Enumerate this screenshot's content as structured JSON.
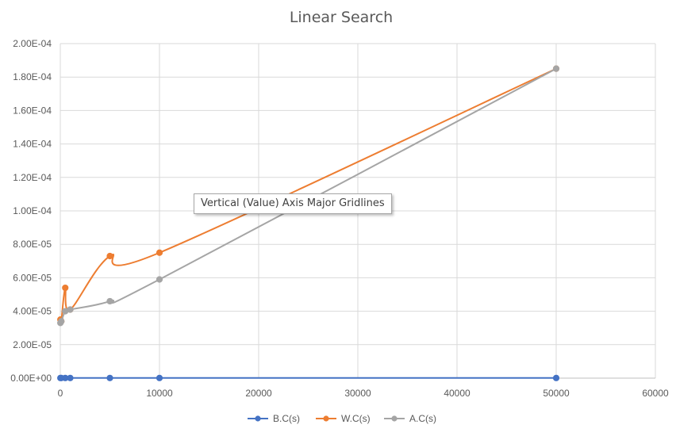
{
  "chart_data": {
    "type": "line",
    "title": "Linear Search",
    "xlabel": "",
    "ylabel": "",
    "xlim": [
      0,
      60000
    ],
    "ylim": [
      0,
      0.0002
    ],
    "x_ticks": [
      "0",
      "10000",
      "20000",
      "30000",
      "40000",
      "50000",
      "60000"
    ],
    "y_ticks": [
      "0.00E+00",
      "2.00E-05",
      "4.00E-05",
      "6.00E-05",
      "8.00E-05",
      "1.00E-04",
      "1.20E-04",
      "1.40E-04",
      "1.60E-04",
      "1.80E-04",
      "2.00E-04"
    ],
    "grid": "major gridlines (both axes)",
    "legend_position": "bottom",
    "series": [
      {
        "name": "B.C(s)",
        "color": "#4472C4",
        "x": [
          10,
          100,
          500,
          1000,
          5000,
          10000,
          50000
        ],
        "y": [
          1e-07,
          1e-07,
          1e-07,
          1e-07,
          1e-07,
          1e-07,
          1e-07
        ]
      },
      {
        "name": "W.C(s)",
        "color": "#ED7D31",
        "x": [
          10,
          100,
          500,
          1000,
          5000,
          10000,
          50000
        ],
        "y": [
          3.5e-05,
          3.4e-05,
          5.4e-05,
          4.1e-05,
          7.3e-05,
          7.5e-05,
          0.000185
        ]
      },
      {
        "name": "A.C(s)",
        "color": "#A5A5A5",
        "x": [
          10,
          100,
          500,
          1000,
          5000,
          10000,
          50000
        ],
        "y": [
          3.3e-05,
          3.4e-05,
          4e-05,
          4.1e-05,
          4.6e-05,
          5.9e-05,
          0.000185
        ]
      }
    ]
  },
  "tooltip": {
    "text": "Vertical (Value) Axis Major Gridlines"
  }
}
